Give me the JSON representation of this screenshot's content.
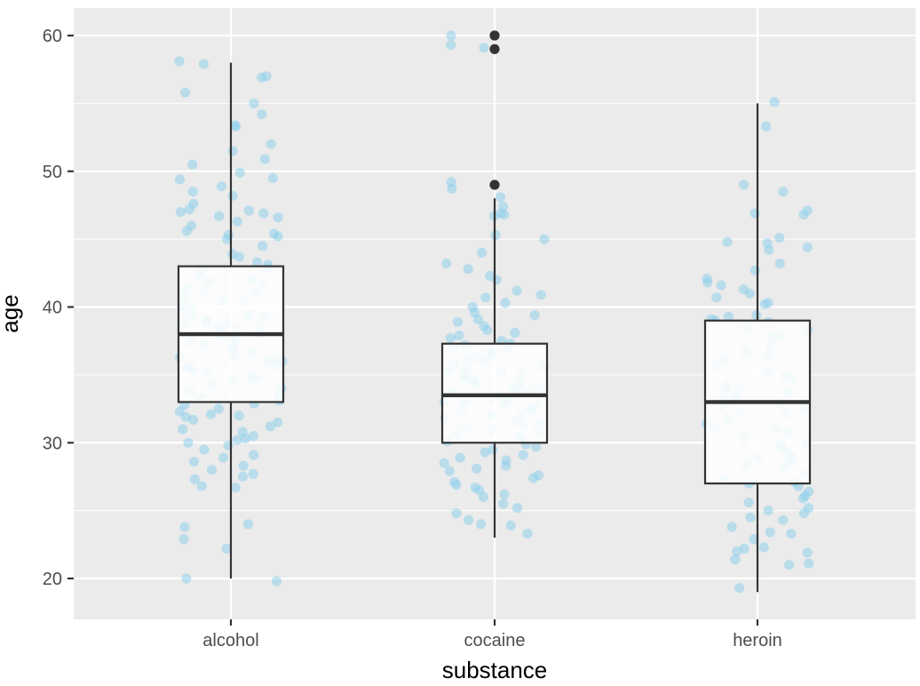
{
  "chart_data": {
    "type": "box",
    "xlabel": "substance",
    "ylabel": "age",
    "ylim": [
      17.2,
      62
    ],
    "y_ticks": [
      20,
      30,
      40,
      50,
      60
    ],
    "categories": [
      "alcohol",
      "cocaine",
      "heroin"
    ],
    "grid": true,
    "background": "#ebebeb",
    "gridline_color": "#ffffff",
    "point_color": "#87ceeb",
    "point_opacity": 0.5,
    "box_fill": "#ffffff",
    "box_line_color": "#333333",
    "outlier_color": "#333333",
    "boxes": [
      {
        "category": "alcohol",
        "min": 20,
        "q1": 33,
        "median": 38,
        "q3": 43,
        "max": 58,
        "outliers": []
      },
      {
        "category": "cocaine",
        "min": 23,
        "q1": 30,
        "median": 33.5,
        "q3": 37.3,
        "max": 48,
        "outliers": [
          49,
          59,
          60
        ]
      },
      {
        "category": "heroin",
        "min": 19,
        "q1": 27,
        "median": 33,
        "q3": 39,
        "max": 55,
        "outliers": []
      }
    ],
    "jitter_points": [
      {
        "category": "alcohol",
        "ages": [
          58.1,
          57.9,
          57,
          56.9,
          55.8,
          55,
          54.2,
          53.4,
          53.3,
          52,
          51.5,
          50.9,
          50.5,
          49.9,
          49.5,
          49.4,
          48.9,
          48.5,
          48.2,
          47.6,
          47.2,
          47.1,
          47,
          46.9,
          46.7,
          46.6,
          46.3,
          46,
          45.6,
          45.4,
          45.3,
          45.2,
          45,
          44.5,
          43.9,
          43.7,
          43.3,
          43.1,
          42.8,
          42.7,
          42.3,
          42,
          41.9,
          41.6,
          41.3,
          41.1,
          41,
          40.9,
          40.6,
          40.5,
          40.2,
          39.9,
          39.7,
          39.4,
          39.3,
          39.2,
          39,
          38.9,
          38.8,
          38.7,
          38.5,
          38.4,
          38.3,
          38.1,
          38,
          37.9,
          37.8,
          37.6,
          37.4,
          37.2,
          37,
          36.8,
          36.6,
          36.4,
          36.3,
          36.1,
          36,
          35.9,
          35.8,
          35.6,
          35.5,
          35.3,
          35.1,
          34.9,
          34.8,
          34.6,
          34.5,
          34.3,
          34,
          33.8,
          33.5,
          33.3,
          33.1,
          32.9,
          32.8,
          32.5,
          32.3,
          32.1,
          32,
          31.9,
          31.7,
          31.5,
          31.2,
          31,
          30.8,
          30.5,
          30.3,
          30.2,
          30,
          29.8,
          29.5,
          29.1,
          28.9,
          28.6,
          28.3,
          28,
          27.7,
          27.5,
          27.3,
          26.8,
          26.7,
          24,
          23.8,
          22.9,
          22.2,
          20,
          19.8
        ]
      },
      {
        "category": "cocaine",
        "ages": [
          60,
          59.3,
          59.1,
          49.2,
          48.7,
          48.1,
          47.4,
          46.9,
          46.8,
          46.7,
          45.3,
          45,
          44,
          43.2,
          42.8,
          42.3,
          42,
          41.2,
          40.9,
          40.7,
          40.3,
          40,
          39.6,
          39.4,
          39.1,
          38.9,
          38.6,
          38.3,
          38.1,
          37.9,
          37.7,
          37.5,
          37.3,
          37.2,
          37,
          36.9,
          36.7,
          36.5,
          36.3,
          36.2,
          36,
          35.8,
          35.6,
          35.4,
          35.3,
          35.2,
          35,
          34.9,
          34.8,
          34.7,
          34.5,
          34.4,
          34.3,
          34.1,
          34,
          33.9,
          33.8,
          33.7,
          33.5,
          33.4,
          33.3,
          33.2,
          33.1,
          33,
          32.9,
          32.8,
          32.7,
          32.5,
          32.4,
          32.3,
          32.1,
          32,
          31.8,
          31.6,
          31.4,
          31.3,
          31.1,
          31,
          30.8,
          30.6,
          30.4,
          30.3,
          30.1,
          29.9,
          29.7,
          29.5,
          29.3,
          29.1,
          28.9,
          28.7,
          28.5,
          28.3,
          28.1,
          27.9,
          27.6,
          27.4,
          27.1,
          26.9,
          26.7,
          26.5,
          26.2,
          26,
          25.5,
          25.2,
          24.8,
          24.3,
          24,
          23.9,
          23.3
        ]
      },
      {
        "category": "heroin",
        "ages": [
          55.1,
          53.3,
          49,
          48.5,
          47.1,
          46.9,
          46.8,
          45.1,
          44.8,
          44.7,
          44.4,
          44.2,
          43.2,
          42.7,
          42.1,
          41.8,
          41.6,
          41.3,
          41,
          40.7,
          40.3,
          40.2,
          39.4,
          39.3,
          39.1,
          39,
          38.9,
          38.5,
          38.3,
          37.9,
          37.7,
          37.1,
          36.7,
          36.5,
          36.2,
          35.7,
          35.3,
          35.1,
          34.9,
          34.7,
          34.3,
          34.1,
          33.9,
          33.7,
          33.4,
          33.2,
          33,
          32.9,
          32.7,
          32.5,
          32.3,
          32.1,
          31.8,
          31.4,
          31.1,
          30.9,
          30.7,
          30.3,
          30,
          29.9,
          29.7,
          29.3,
          29,
          28.9,
          28.8,
          28.6,
          28.4,
          28.2,
          27.7,
          27.3,
          27.1,
          27,
          26.8,
          26.4,
          26.1,
          25.9,
          25.6,
          25.2,
          25,
          24.8,
          24.5,
          24.3,
          23.8,
          23.4,
          23.3,
          22.9,
          22.3,
          22.2,
          22,
          21.9,
          21.4,
          21.1,
          21,
          19.3
        ]
      }
    ]
  }
}
